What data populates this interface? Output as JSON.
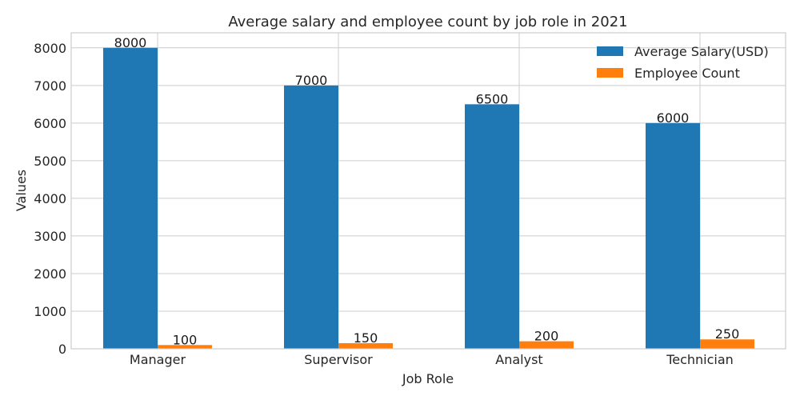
{
  "chart_data": {
    "type": "bar",
    "title": "Average salary and employee count by job role in 2021",
    "xlabel": "Job Role",
    "ylabel": "Values",
    "categories": [
      "Manager",
      "Supervisor",
      "Analyst",
      "Technician"
    ],
    "series": [
      {
        "name": "Average Salary(USD)",
        "values": [
          8000,
          7000,
          6500,
          6000
        ],
        "color": "#1f77b4"
      },
      {
        "name": "Employee Count",
        "values": [
          100,
          150,
          200,
          250
        ],
        "color": "#ff7f0e"
      }
    ],
    "ylim": [
      0,
      8400
    ],
    "yticks": [
      0,
      1000,
      2000,
      3000,
      4000,
      5000,
      6000,
      7000,
      8000
    ],
    "grid": true,
    "legend_position": "top-right"
  }
}
